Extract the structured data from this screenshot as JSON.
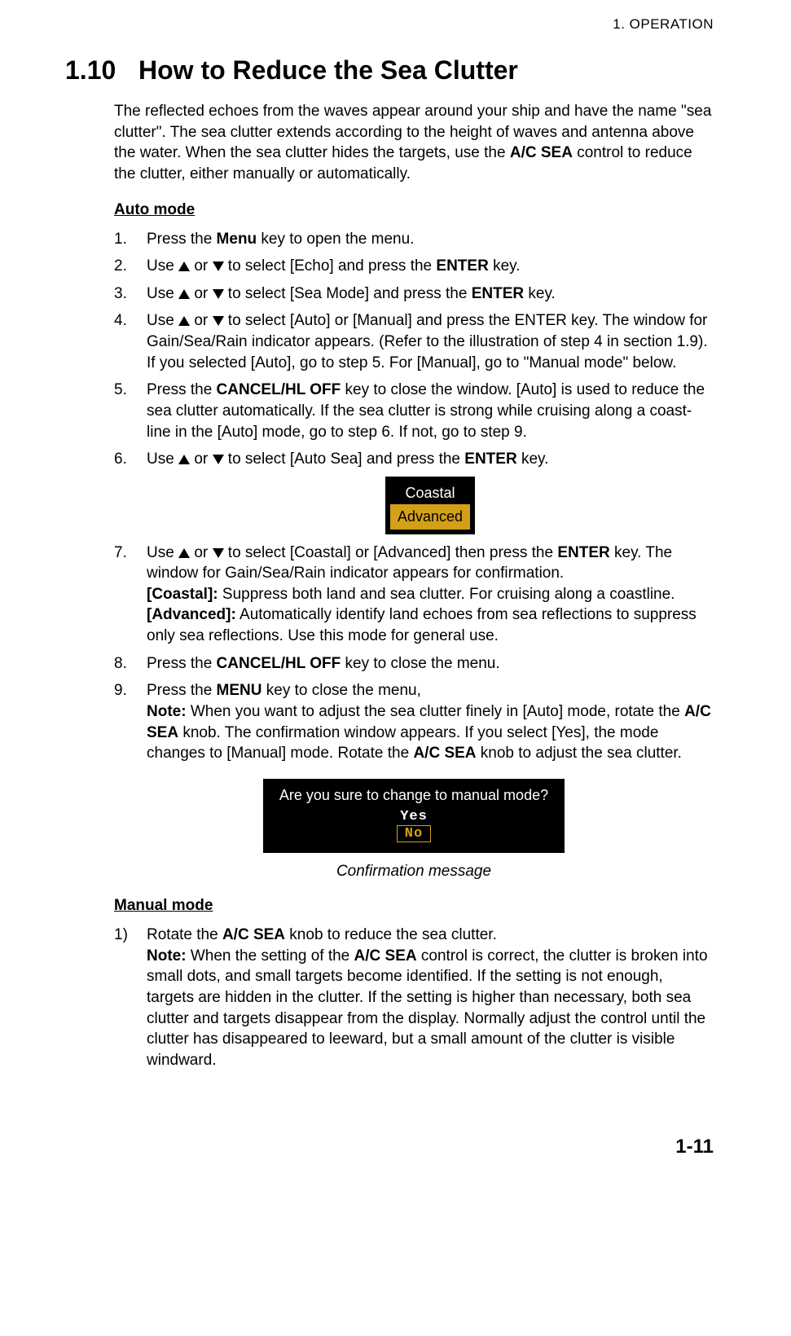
{
  "header": {
    "running": "1.  OPERATION"
  },
  "section": {
    "number": "1.10",
    "title": "How to Reduce the Sea Clutter"
  },
  "intro": "The reflected echoes from the waves appear around your ship and have the name \"sea clutter\". The sea clutter extends according to the height of waves and antenna above the water. When the sea clutter hides the targets, use the ",
  "intro_bold": "A/C SEA",
  "intro_tail": " control to reduce the clutter, either manually or automatically.",
  "auto": {
    "heading": "Auto mode",
    "steps": {
      "s1_a": "Press the ",
      "s1_b": "Menu",
      "s1_c": " key to open the menu.",
      "s2_a": "Use ",
      "s2_or": " or ",
      "s2_b": " to select [Echo] and press the ",
      "s2_c": "ENTER",
      "s2_d": " key.",
      "s3_b": " to select [Sea Mode] and press the ",
      "s3_c": "ENTER",
      "s3_d": " key.",
      "s4_b": " to select [Auto] or [Manual] and press the ENTER key. The window for Gain/Sea/Rain indicator appears. (Refer to the illustration of step 4 in section 1.9). If you selected [Auto], go to step 5. For [Manual], go to \"Manual mode\" below.",
      "s5_a": "Press the ",
      "s5_b": "CANCEL/HL OFF",
      "s5_c": " key to close the window. [Auto] is used to reduce the sea clutter automatically. If the sea clutter is strong while cruising along a coast-line in the [Auto] mode, go to step 6. If not, go to step 9.",
      "s6_b": " to select [Auto Sea] and press the ",
      "s6_c": "ENTER",
      "s6_d": " key.",
      "s7_b": " to select [Coastal] or [Advanced] then press the ",
      "s7_c": "ENTER",
      "s7_d": " key. The window for Gain/Sea/Rain indicator appears for confirmation.",
      "s7_coastal_label": "[Coastal]:",
      "s7_coastal_text": " Suppress both land and sea clutter. For cruising along a coastline.",
      "s7_adv_label": "[Advanced]:",
      "s7_adv_text": " Automatically identify land echoes from sea reflections to suppress only sea reflections. Use this mode for general use.",
      "s8_a": "Press the ",
      "s8_b": "CANCEL/HL OFF",
      "s8_c": " key to close the menu.",
      "s9_a": "Press the ",
      "s9_b": "MENU",
      "s9_c": " key to close the menu,",
      "s9_note_label": "Note:",
      "s9_note_a": " When you want to adjust the sea clutter finely in [Auto] mode, rotate the ",
      "s9_note_b": "A/C SEA",
      "s9_note_c": " knob. The confirmation window appears. If you select [Yes], the mode changes to [Manual] mode. Rotate the ",
      "s9_note_d": "A/C SEA",
      "s9_note_e": " knob to adjust the sea clutter."
    },
    "menu_box": {
      "option1": "Coastal",
      "option2": "Advanced",
      "bg_color": "#000000",
      "option_color": "#ffffff",
      "selected_bg": "#d4a017",
      "selected_fg": "#000000"
    },
    "confirm_box": {
      "question": "Are you sure to change to manual mode?",
      "yes": "Yes",
      "no": "No",
      "caption": "Confirmation message",
      "bg_color": "#000000",
      "text_color": "#ffffff",
      "selected_border": "#d4a017",
      "selected_fg": "#d4a017"
    }
  },
  "manual": {
    "heading": "Manual mode",
    "s1_a": "Rotate the ",
    "s1_b": "A/C SEA",
    "s1_c": " knob to reduce the sea clutter.",
    "s1_note_label": "Note:",
    "s1_note_a": " When the setting of the ",
    "s1_note_b": "A/C SEA",
    "s1_note_c": " control is correct, the clutter is broken into small dots, and small targets become identified. If the setting is not enough, targets are hidden in the clutter. If the setting is higher than necessary, both sea clutter and targets disappear from the display. Normally adjust the control until the clutter has disappeared to leeward, but a small amount of the clutter is visible windward."
  },
  "footer": {
    "page": "1-11"
  },
  "colors": {
    "page_bg": "#ffffff",
    "text": "#000000",
    "highlight": "#d4a017"
  },
  "typography": {
    "body_fontsize_pt": 14,
    "heading_fontsize_pt": 24,
    "font_family": "Arial"
  }
}
